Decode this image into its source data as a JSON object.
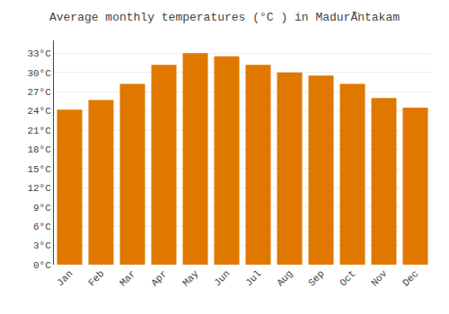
{
  "chart_data": {
    "type": "bar",
    "title": "Average monthly temperatures (°C ) in MadurĀ̈ntakam",
    "categories": [
      "Jan",
      "Feb",
      "Mar",
      "Apr",
      "May",
      "Jun",
      "Jul",
      "Aug",
      "Sep",
      "Oct",
      "Nov",
      "Dec"
    ],
    "values": [
      24.2,
      25.7,
      28.2,
      31.2,
      33.0,
      32.5,
      31.2,
      30.0,
      29.5,
      28.2,
      26.0,
      24.5
    ],
    "color": "#E07800",
    "ylim": [
      0,
      35
    ],
    "yticks": [
      {
        "value": 0,
        "label": "0°C"
      },
      {
        "value": 3,
        "label": "3°C"
      },
      {
        "value": 6,
        "label": "6°C"
      },
      {
        "value": 9,
        "label": "9°C"
      },
      {
        "value": 12,
        "label": "12°C"
      },
      {
        "value": 15,
        "label": "15°C"
      },
      {
        "value": 18,
        "label": "18°C"
      },
      {
        "value": 21,
        "label": "21°C"
      },
      {
        "value": 24,
        "label": "24°C"
      },
      {
        "value": 27,
        "label": "27°C"
      },
      {
        "value": 30,
        "label": "30°C"
      },
      {
        "value": 33,
        "label": "33°C"
      }
    ],
    "grid": true
  }
}
